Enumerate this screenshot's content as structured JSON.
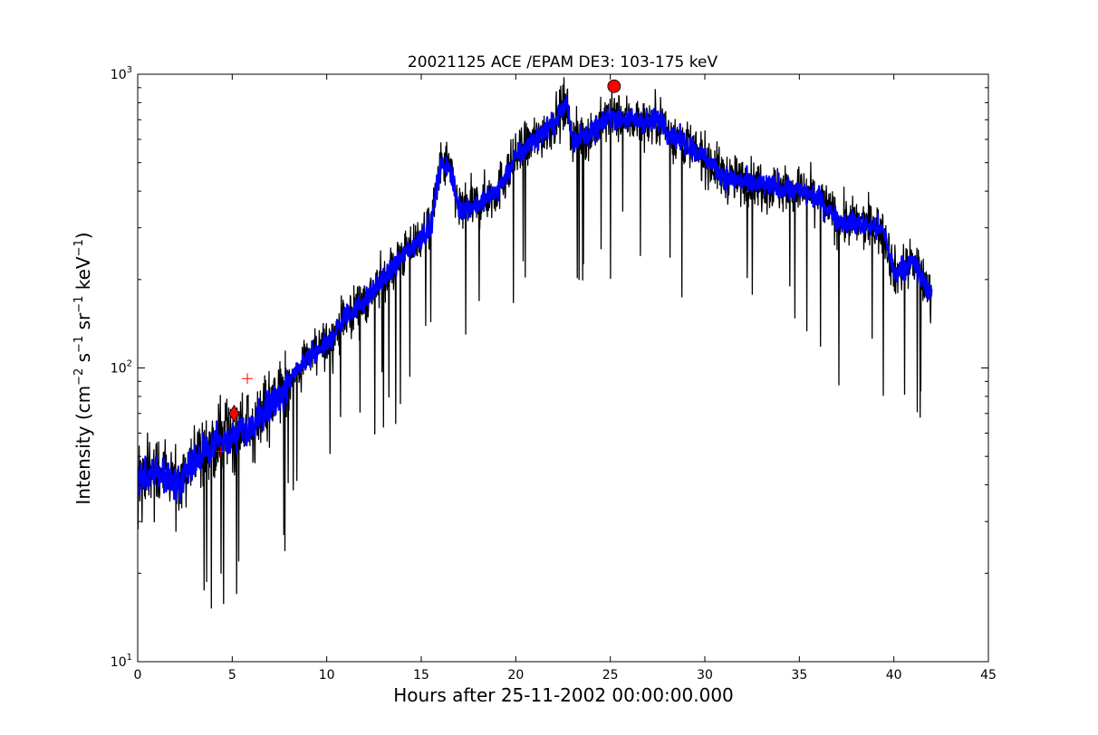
{
  "chart_data": {
    "type": "line",
    "title": "20021125 ACE /EPAM DE3: 103-175 keV",
    "xlabel": "Hours after 25-11-2002 00:00:00.000",
    "ylabel": {
      "prefix": "Intensity (cm",
      "sup1": "−2",
      "mid1": " s",
      "sup2": "−1",
      "mid2": " sr",
      "sup3": "−1",
      "mid3": " keV",
      "sup4": "−1",
      "suffix": ")"
    },
    "x_scale": "linear",
    "y_scale": "log",
    "xlim": [
      0,
      45
    ],
    "ylim": [
      10,
      1000
    ],
    "x_ticks": [
      0,
      5,
      10,
      15,
      20,
      25,
      30,
      35,
      40,
      45
    ],
    "x_tick_labels": [
      "0",
      "5",
      "10",
      "15",
      "20",
      "25",
      "30",
      "35",
      "40",
      "45"
    ],
    "y_ticks": [
      10,
      100,
      1000
    ],
    "y_tick_labels": [
      {
        "base": "10",
        "exp": "1"
      },
      {
        "base": "10",
        "exp": "2"
      },
      {
        "base": "10",
        "exp": "3"
      }
    ],
    "grid": false,
    "legend": "none",
    "series": [
      {
        "style": "raw",
        "color": "#000000",
        "noise_scale": 1.0,
        "x": [
          0,
          1,
          2,
          3,
          4,
          5,
          6,
          7,
          8,
          9,
          10,
          11,
          12,
          13,
          14,
          15,
          15.5,
          16,
          16.4,
          17,
          18,
          19,
          20,
          21,
          22,
          22.7,
          23,
          24,
          25,
          26,
          27,
          27.8,
          28,
          29,
          30,
          31,
          32,
          33,
          34,
          35,
          36,
          37,
          38,
          39,
          39.5,
          40,
          40.5,
          41,
          41.5,
          42
        ],
        "y": [
          42,
          44,
          40,
          48,
          55,
          58,
          63,
          75,
          88,
          110,
          120,
          150,
          170,
          200,
          240,
          280,
          300,
          480,
          500,
          350,
          360,
          400,
          520,
          600,
          680,
          800,
          600,
          630,
          720,
          700,
          690,
          700,
          640,
          580,
          520,
          450,
          430,
          420,
          410,
          400,
          380,
          320,
          310,
          300,
          290,
          210,
          220,
          230,
          200,
          180
        ]
      },
      {
        "style": "smoothed",
        "color": "#0000ff",
        "noise_scale": 0.45,
        "x": [
          0,
          1,
          2,
          3,
          4,
          5,
          6,
          7,
          8,
          9,
          10,
          11,
          12,
          13,
          14,
          15,
          15.5,
          16,
          16.4,
          17,
          18,
          19,
          20,
          21,
          22,
          22.7,
          23,
          24,
          25,
          26,
          27,
          27.8,
          28,
          29,
          30,
          31,
          32,
          33,
          34,
          35,
          36,
          37,
          38,
          39,
          39.5,
          40,
          40.5,
          41,
          41.5,
          42
        ],
        "y": [
          42,
          44,
          40,
          48,
          55,
          58,
          63,
          75,
          88,
          110,
          120,
          150,
          170,
          200,
          240,
          280,
          300,
          480,
          500,
          350,
          360,
          400,
          520,
          600,
          680,
          800,
          600,
          630,
          720,
          700,
          690,
          700,
          640,
          580,
          520,
          450,
          430,
          420,
          410,
          400,
          380,
          320,
          310,
          300,
          290,
          210,
          220,
          230,
          200,
          180
        ]
      }
    ],
    "markers": [
      {
        "shape": "diamond",
        "x": 5.1,
        "y": 70,
        "color": "#ff0000"
      },
      {
        "shape": "circle",
        "x": 25.2,
        "y": 910,
        "color": "#ff0000"
      },
      {
        "shape": "plus",
        "x": 4.4,
        "y": 52,
        "color": "#ff0000"
      },
      {
        "shape": "plus",
        "x": 5.8,
        "y": 92,
        "color": "#ff0000"
      }
    ]
  }
}
